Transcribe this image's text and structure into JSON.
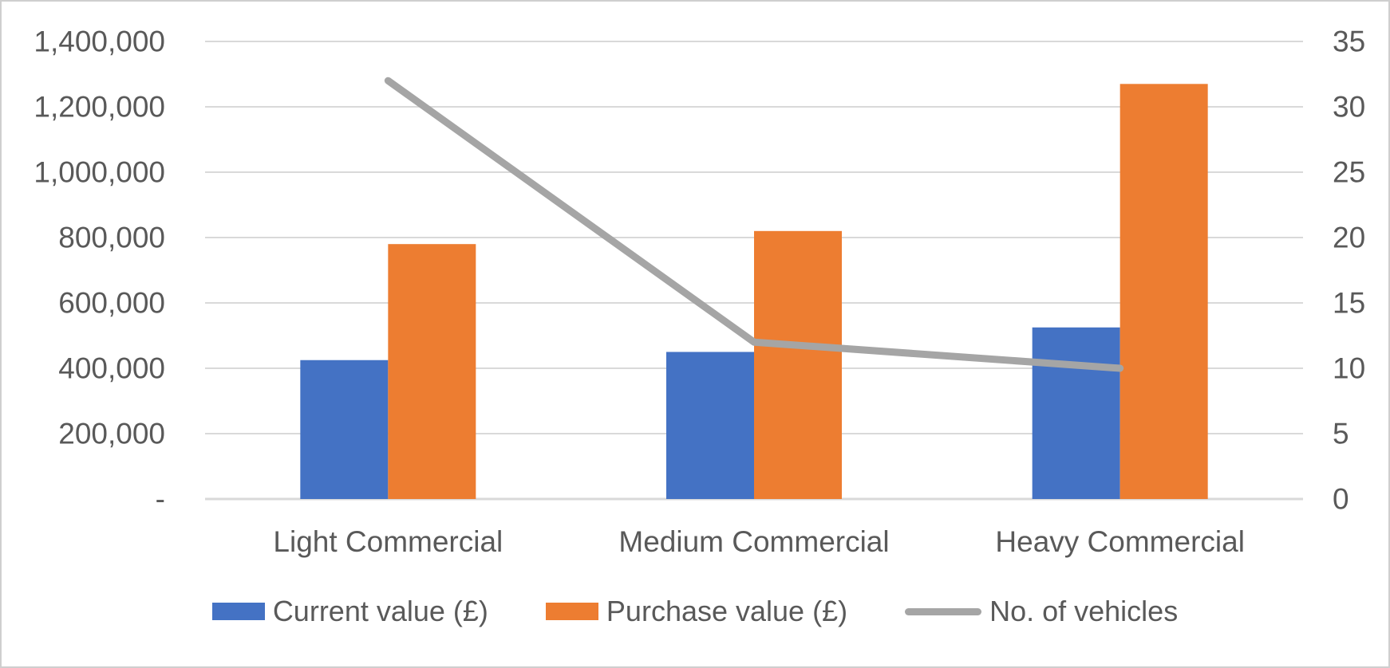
{
  "chart_data": {
    "type": "combo",
    "title": "",
    "categories": [
      "Light Commercial",
      "Medium Commercial",
      "Heavy Commercial"
    ],
    "series": [
      {
        "name": "Current value (£)",
        "type": "bar",
        "axis": "left",
        "color": "#4472C4",
        "values": [
          425000,
          450000,
          525000
        ]
      },
      {
        "name": "Purchase value (£)",
        "type": "bar",
        "axis": "left",
        "color": "#ED7D31",
        "values": [
          780000,
          820000,
          1270000
        ]
      },
      {
        "name": "No. of vehicles",
        "type": "line",
        "axis": "right",
        "color": "#A5A5A5",
        "values": [
          32,
          12,
          10
        ]
      }
    ],
    "left_axis": {
      "min": 0,
      "max": 1400000,
      "step": 200000,
      "tick_labels": [
        "-",
        "200,000",
        "400,000",
        "600,000",
        "800,000",
        "1,000,000",
        "1,200,000",
        "1,400,000"
      ]
    },
    "right_axis": {
      "min": 0,
      "max": 35,
      "step": 5,
      "tick_labels": [
        "0",
        "5",
        "10",
        "15",
        "20",
        "25",
        "30",
        "35"
      ]
    },
    "grid": true,
    "legend_position": "bottom"
  },
  "colors": {
    "background": "#FFFFFF",
    "frame_border": "#CFCFCF",
    "gridline": "#D9D9D9",
    "axis_line": "#D9D9D9",
    "axis_text": "#595959"
  }
}
